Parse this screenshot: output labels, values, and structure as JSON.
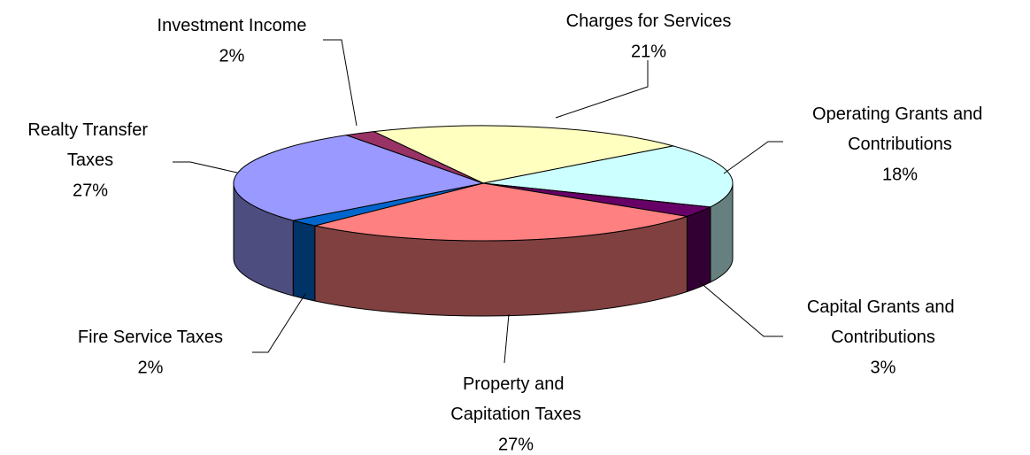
{
  "chart_data": {
    "type": "pie3d",
    "categories": [
      "Charges for Services",
      "Operating Grants and Contributions",
      "Capital Grants and Contributions",
      "Property and Capitation Taxes",
      "Fire Service Taxes",
      "Realty Transfer Taxes",
      "Investment Income"
    ],
    "values": [
      21,
      18,
      3,
      27,
      2,
      27,
      2
    ],
    "value_labels": [
      "21%",
      "18%",
      "3%",
      "27%",
      "2%",
      "27%",
      "2%"
    ],
    "colors": [
      "#ffffc0",
      "#ccffff",
      "#660066",
      "#ff8080",
      "#0066cc",
      "#9999ff",
      "#993366"
    ]
  }
}
